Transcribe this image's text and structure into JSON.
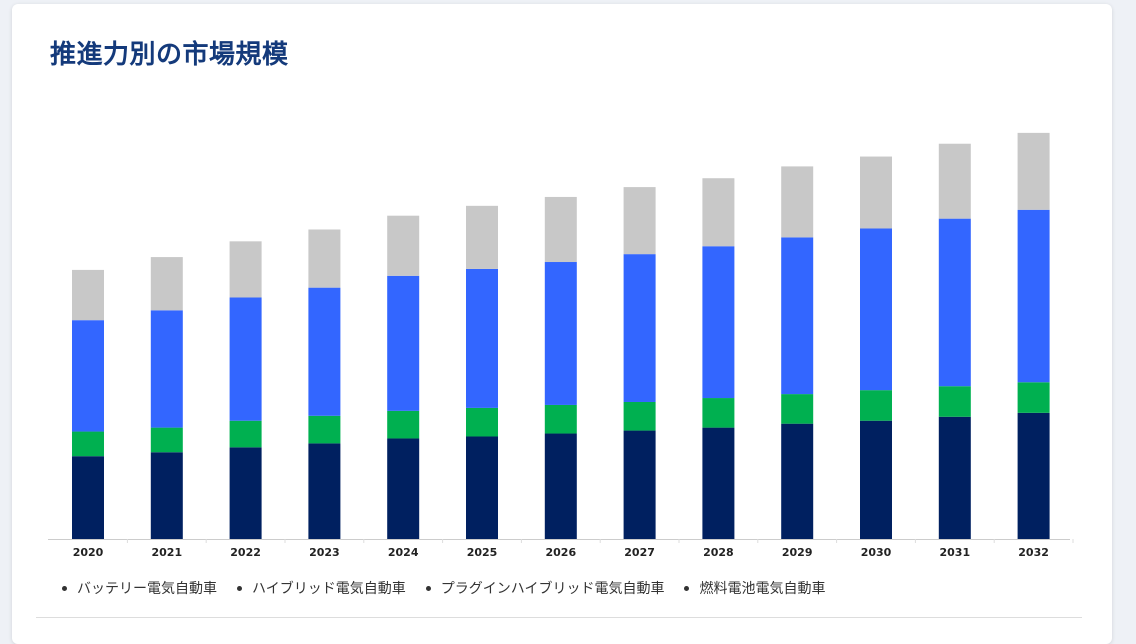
{
  "page": {
    "title": "推進力別の市場規模"
  },
  "legend": {
    "items": [
      "バッテリー電気自動車",
      "ハイブリッド電気自動車",
      "プラグインハイブリッド電気自動車",
      "燃料電池電気自動車"
    ]
  },
  "colors": {
    "series": [
      "#002060",
      "#00b050",
      "#3366ff",
      "#c8c8c8"
    ]
  },
  "chart_data": {
    "type": "bar",
    "stacked": true,
    "categories": [
      "2020",
      "2021",
      "2022",
      "2023",
      "2024",
      "2025",
      "2026",
      "2027",
      "2028",
      "2029",
      "2030",
      "2031",
      "2032"
    ],
    "series": [
      {
        "name": "バッテリー電気自動車",
        "values": [
          84,
          88,
          93,
          97,
          102,
          104,
          107,
          110,
          113,
          117,
          120,
          124,
          128
        ]
      },
      {
        "name": "ハイブリッド電気自動車",
        "values": [
          25,
          25,
          27,
          28,
          28,
          29,
          29,
          29,
          30,
          30,
          31,
          31,
          31
        ]
      },
      {
        "name": "プラグインハイブリッド電気自動車",
        "values": [
          113,
          119,
          125,
          130,
          137,
          141,
          145,
          150,
          154,
          159,
          164,
          170,
          175
        ]
      },
      {
        "name": "燃料電池電気自動車",
        "values": [
          51,
          54,
          57,
          59,
          61,
          64,
          66,
          68,
          69,
          72,
          73,
          76,
          78
        ]
      }
    ],
    "ylim": [
      0,
      420
    ],
    "grid": false,
    "legend_position": "bottom"
  }
}
